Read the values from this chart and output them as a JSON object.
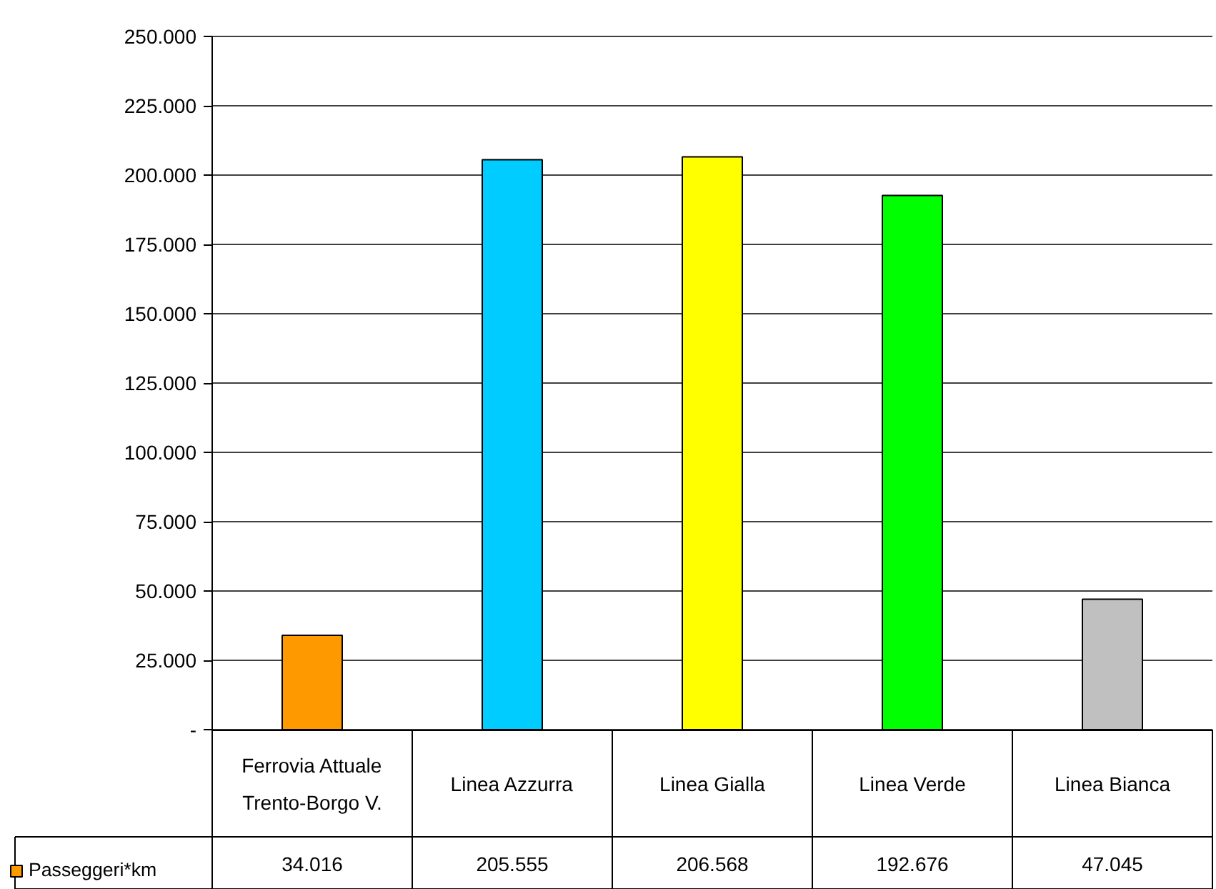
{
  "chart_data": {
    "type": "bar",
    "categories": [
      "Ferrovia Attuale\nTrento-Borgo V.",
      "Linea Azzurra",
      "Linea Gialla",
      "Linea Verde",
      "Linea Bianca"
    ],
    "series": [
      {
        "name": "Passeggeri*km",
        "color": "#ff9900",
        "colors": [
          "#ff9900",
          "#00ccff",
          "#ffff00",
          "#00ff00",
          "#c0c0c0"
        ],
        "values": [
          34016,
          205555,
          206568,
          192676,
          47045
        ],
        "value_labels": [
          "34.016",
          "205.555",
          "206.568",
          "192.676",
          "47.045"
        ]
      }
    ],
    "ylim": [
      0,
      250000
    ],
    "yticks": [
      {
        "value": 0,
        "label": "-"
      },
      {
        "value": 25000,
        "label": "25.000"
      },
      {
        "value": 50000,
        "label": "50.000"
      },
      {
        "value": 75000,
        "label": "75.000"
      },
      {
        "value": 100000,
        "label": "100.000"
      },
      {
        "value": 125000,
        "label": "125.000"
      },
      {
        "value": 150000,
        "label": "150.000"
      },
      {
        "value": 175000,
        "label": "175.000"
      },
      {
        "value": 200000,
        "label": "200.000"
      },
      {
        "value": 225000,
        "label": "225.000"
      },
      {
        "value": 250000,
        "label": "250.000"
      }
    ],
    "grid": "y",
    "legend": "bottom left"
  }
}
